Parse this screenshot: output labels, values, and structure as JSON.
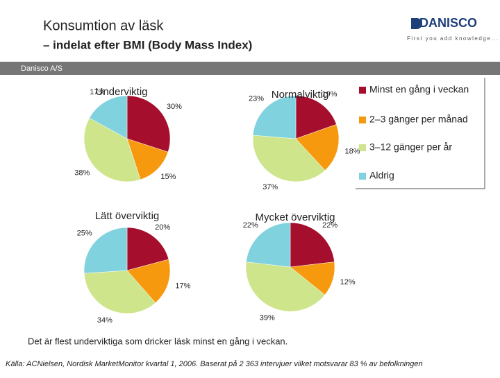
{
  "header": {
    "title": "Konsumtion av läsk",
    "subtitle": "– indelat efter BMI (Body Mass Index)",
    "brand": "DANISCO",
    "tagline": "First you add knowledge...",
    "bar_label": "Danisco A/S"
  },
  "legend": {
    "labels": [
      "Minst en gång i veckan",
      "2–3 gänger per månad",
      "3–12 gänger per år",
      "Aldrig"
    ],
    "colors": [
      "#a50e2d",
      "#f7990f",
      "#cfe58c",
      "#7fd2de"
    ]
  },
  "chart_data": [
    {
      "type": "pie",
      "title": "Underviktig",
      "values": [
        30,
        15,
        38,
        17
      ],
      "value_labels": [
        "30%",
        "15%",
        "38%",
        "17%"
      ]
    },
    {
      "type": "pie",
      "title": "Normalviktig",
      "values": [
        19,
        18,
        37,
        23
      ],
      "value_labels": [
        "19%",
        "18%",
        "37%",
        "23%"
      ]
    },
    {
      "type": "pie",
      "title": "Lätt överviktig",
      "values": [
        20,
        17,
        34,
        25
      ],
      "value_labels": [
        "20%",
        "17%",
        "34%",
        "25%"
      ]
    },
    {
      "type": "pie",
      "title": "Mycket överviktig",
      "values": [
        22,
        12,
        39,
        22
      ],
      "value_labels": [
        "22%",
        "12%",
        "39%",
        "22%"
      ]
    }
  ],
  "footer": {
    "note": "Det är flest underviktiga som dricker läsk minst en gång i veckan.",
    "source": "Källa: ACNielsen, Nordisk MarketMonitor kvartal 1, 2006. Baserat på 2 363  intervjuer vilket motsvarar 83 % av befolkningen"
  }
}
